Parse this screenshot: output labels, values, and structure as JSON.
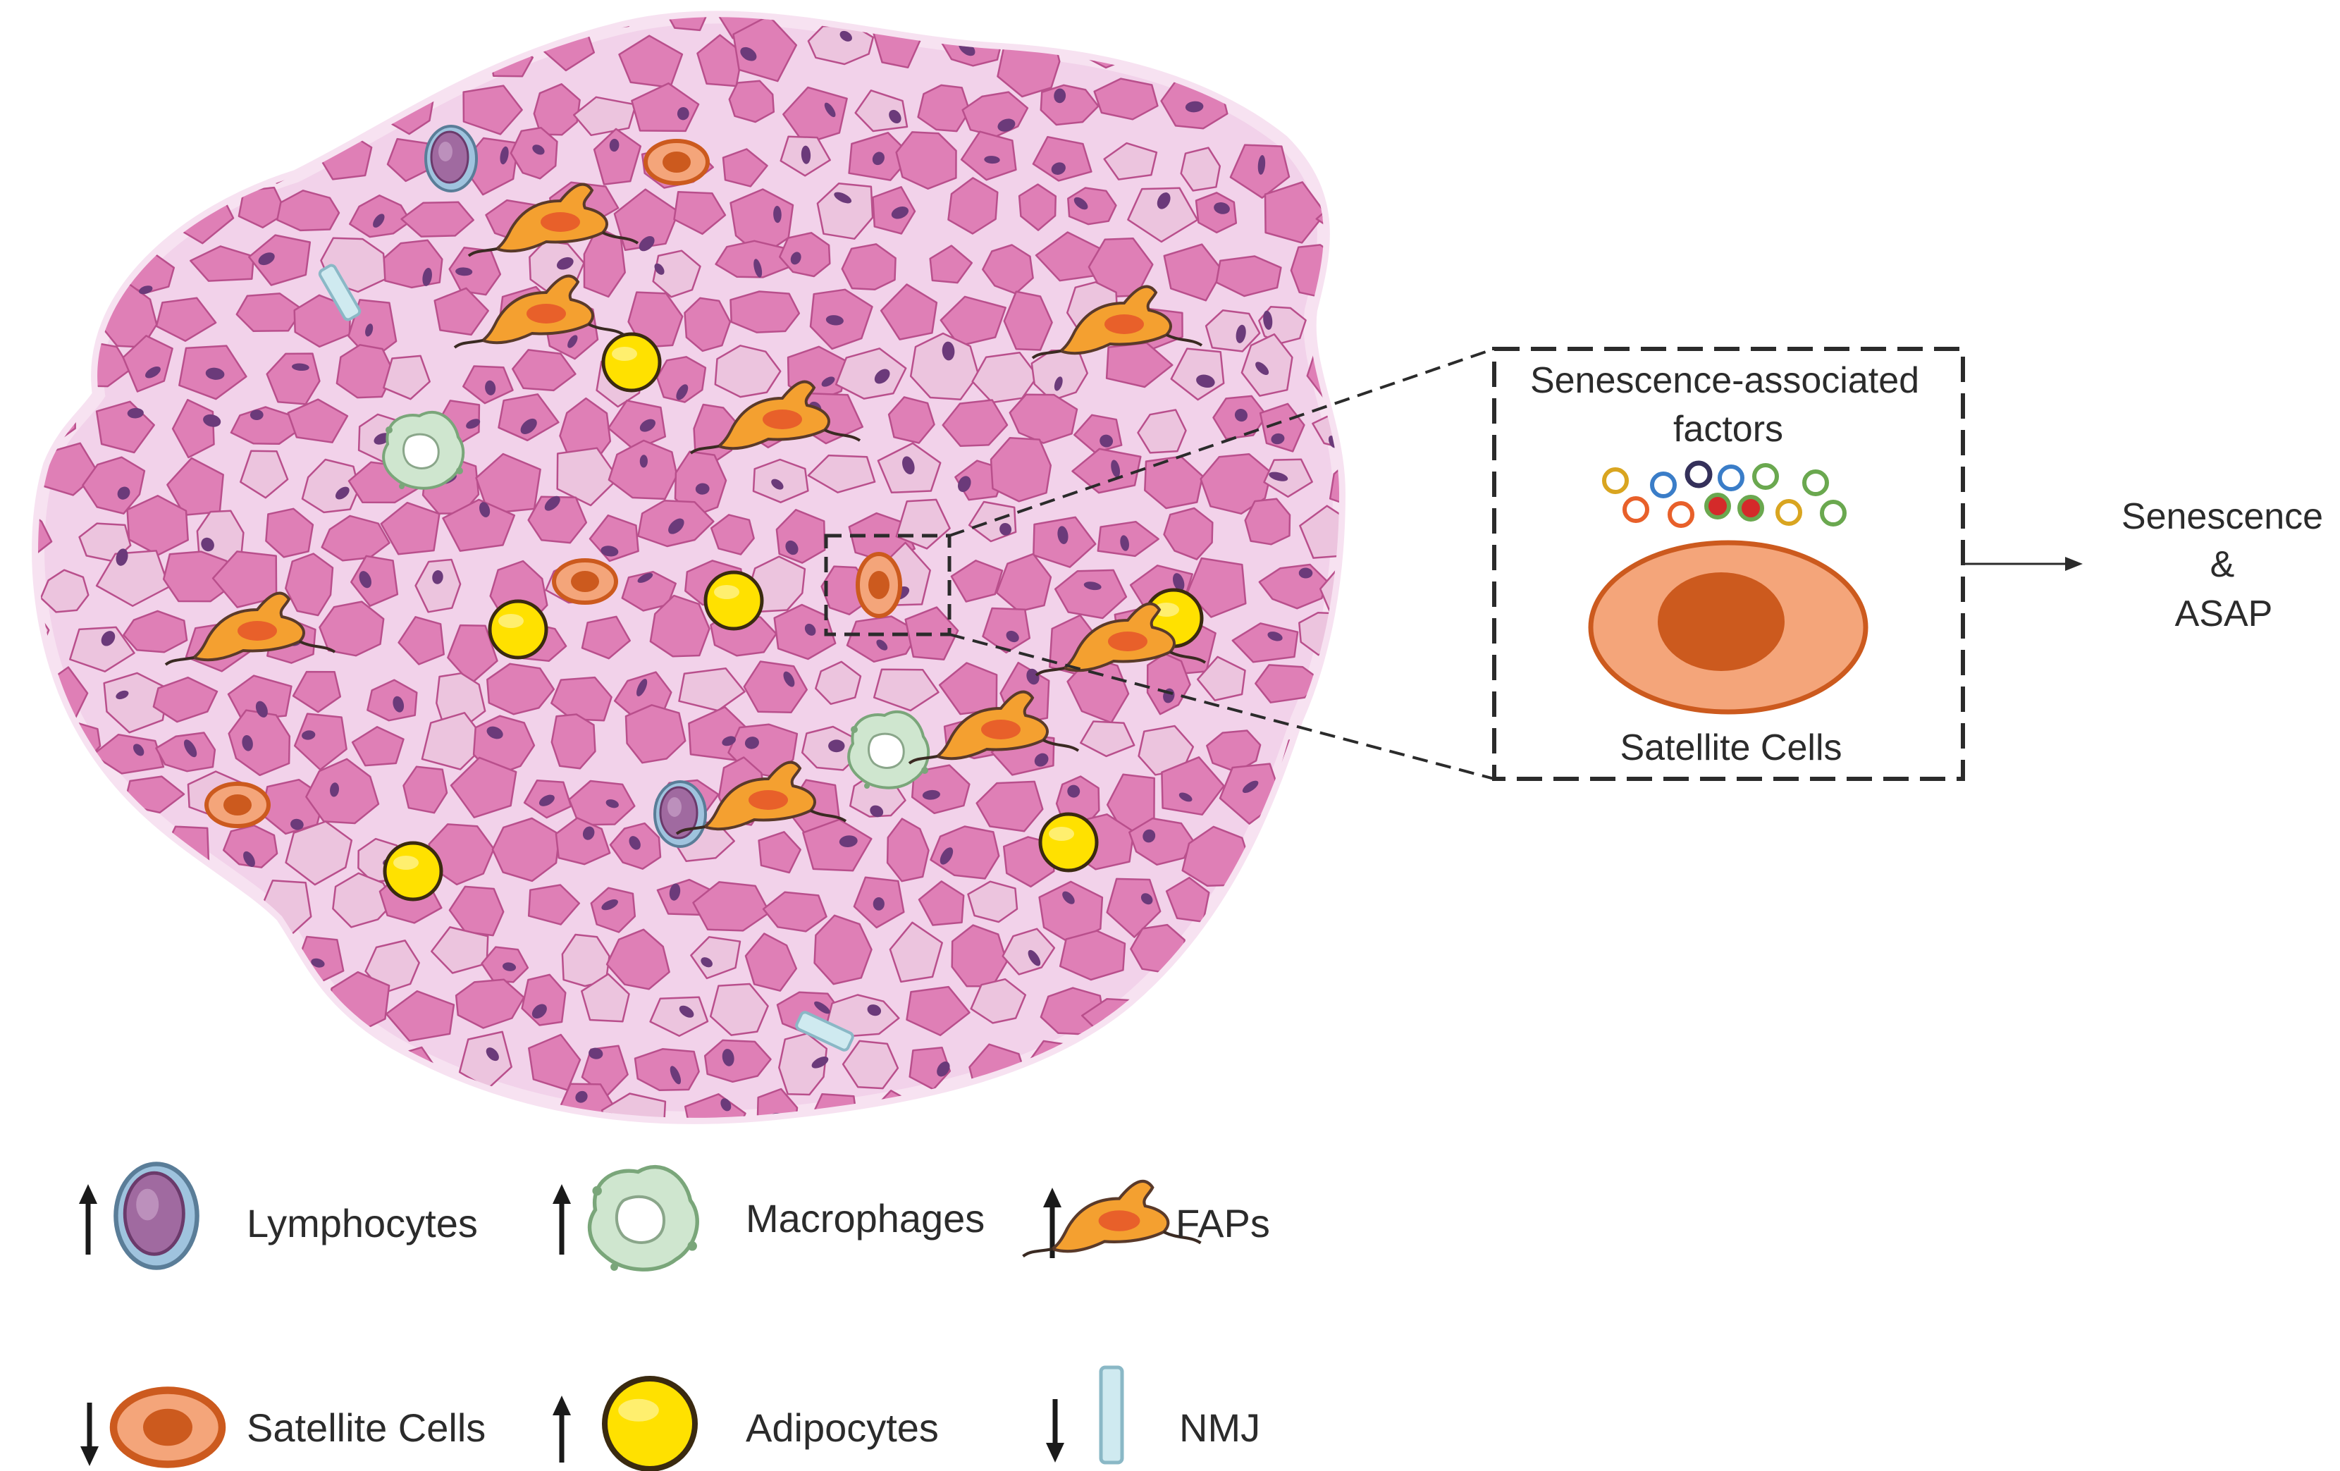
{
  "inset": {
    "title_line1": "Senescence-associated",
    "title_line2": "factors",
    "cell_label": "Satellite Cells"
  },
  "outcome": {
    "line1": "Senescence",
    "line2": "&",
    "line3": "ASAP"
  },
  "legend": [
    {
      "label": "Lymphocytes",
      "arrow": "up",
      "icon": "lymphocyte-icon"
    },
    {
      "label": "Macrophages",
      "arrow": "up",
      "icon": "macrophage-icon"
    },
    {
      "label": "FAPs",
      "arrow": "up",
      "icon": "fap-icon"
    },
    {
      "label": "Satellite Cells",
      "arrow": "down",
      "icon": "satellite-cell-icon"
    },
    {
      "label": "Adipocytes",
      "arrow": "up",
      "icon": "adipocyte-icon"
    },
    {
      "label": "NMJ",
      "arrow": "down",
      "icon": "nmj-icon"
    }
  ],
  "colors": {
    "tissue_bg": "#f2d2ea",
    "fiber": "#df7fb6",
    "fiber_stroke": "#b94f8c",
    "nucleus": "#6b3a7a",
    "adipocyte": "#ffe100",
    "satellite": "#f4a57a",
    "satellite_core": "#cc5a1e",
    "macrophage": "#cfe6cf",
    "lymphocyte": "#9fc3de",
    "fap": "#f4a030",
    "nmj": "#cfeaf0"
  }
}
